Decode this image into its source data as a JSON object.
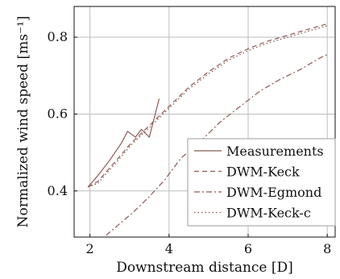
{
  "chart_data": {
    "type": "line",
    "title": "",
    "xlabel": "Downstream distance [D]",
    "ylabel": "Normalized wind speed [ms⁻¹]",
    "xlim": [
      1.6,
      8.2
    ],
    "ylim": [
      0.28,
      0.88
    ],
    "xticks": [
      2,
      4,
      6,
      8
    ],
    "xtick_labels": [
      "2",
      "4",
      "6",
      "8"
    ],
    "yticks": [
      0.4,
      0.6,
      0.8
    ],
    "ytick_labels": [
      "0.4",
      "0.6",
      "0.8"
    ],
    "grid": true,
    "legend_position": "lower-right",
    "colors": {
      "line": "#8b5a52",
      "grid": "#bdbdbd",
      "axis": "#111111"
    },
    "series": [
      {
        "name": "Measurements",
        "style": "solid",
        "x": [
          1.95,
          2.2,
          2.5,
          2.8,
          2.95,
          3.15,
          3.3,
          3.5,
          3.75
        ],
        "y": [
          0.41,
          0.44,
          0.48,
          0.525,
          0.555,
          0.54,
          0.56,
          0.54,
          0.64
        ]
      },
      {
        "name": "DWM-Keck",
        "style": "dashed",
        "x": [
          1.95,
          2.2,
          2.5,
          2.8,
          3.0,
          3.2,
          3.5,
          3.8,
          4.1,
          4.5,
          5.0,
          5.5,
          6.0,
          6.5,
          7.0,
          7.5,
          8.0
        ],
        "y": [
          0.41,
          0.425,
          0.46,
          0.495,
          0.52,
          0.54,
          0.57,
          0.6,
          0.63,
          0.67,
          0.71,
          0.745,
          0.77,
          0.79,
          0.805,
          0.82,
          0.835
        ]
      },
      {
        "name": "DWM-Egmond",
        "style": "dashdot",
        "x": [
          1.9,
          2.3,
          2.7,
          3.1,
          3.5,
          3.9,
          4.3,
          4.8,
          5.3,
          5.8,
          6.3,
          6.8,
          7.3,
          7.8,
          8.0
        ],
        "y": [
          0.25,
          0.275,
          0.31,
          0.345,
          0.385,
          0.43,
          0.485,
          0.53,
          0.58,
          0.62,
          0.66,
          0.69,
          0.715,
          0.745,
          0.755
        ]
      },
      {
        "name": "DWM-Keck-c",
        "style": "dotted",
        "x": [
          1.95,
          2.2,
          2.5,
          2.8,
          3.0,
          3.2,
          3.5,
          3.8,
          4.1,
          4.5,
          5.0,
          5.5,
          6.0,
          6.5,
          7.0,
          7.5,
          8.0
        ],
        "y": [
          0.41,
          0.42,
          0.455,
          0.49,
          0.515,
          0.535,
          0.565,
          0.595,
          0.625,
          0.665,
          0.705,
          0.74,
          0.765,
          0.785,
          0.8,
          0.815,
          0.83
        ]
      }
    ]
  }
}
